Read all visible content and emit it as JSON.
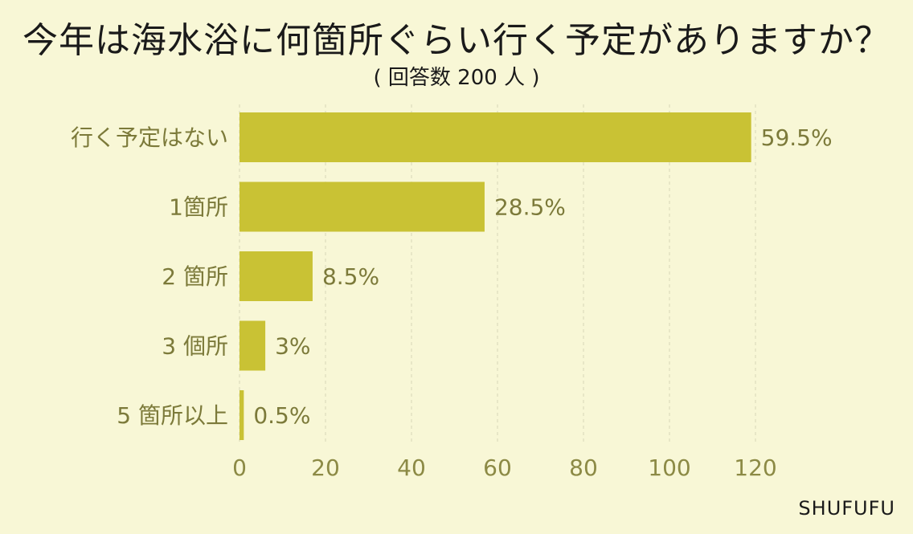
{
  "chart_data": {
    "type": "bar",
    "orientation": "horizontal",
    "title": "今年は海水浴に何箇所ぐらい行く予定がありますか？",
    "subtitle": "( 回答数 200 人 )",
    "categories": [
      "行く予定はない",
      "1箇所",
      "2 箇所",
      "3 個所",
      "5 箇所以上"
    ],
    "values": [
      119,
      57,
      17,
      6,
      1
    ],
    "value_labels": [
      "59.5%",
      "28.5%",
      "8.5%",
      "3%",
      "0.5%"
    ],
    "xlim": [
      0,
      120
    ],
    "xticks": [
      0,
      20,
      40,
      60,
      80,
      100,
      120
    ],
    "grid": true,
    "bar_color": "#c9c234"
  },
  "brand": "SHUFUFU"
}
